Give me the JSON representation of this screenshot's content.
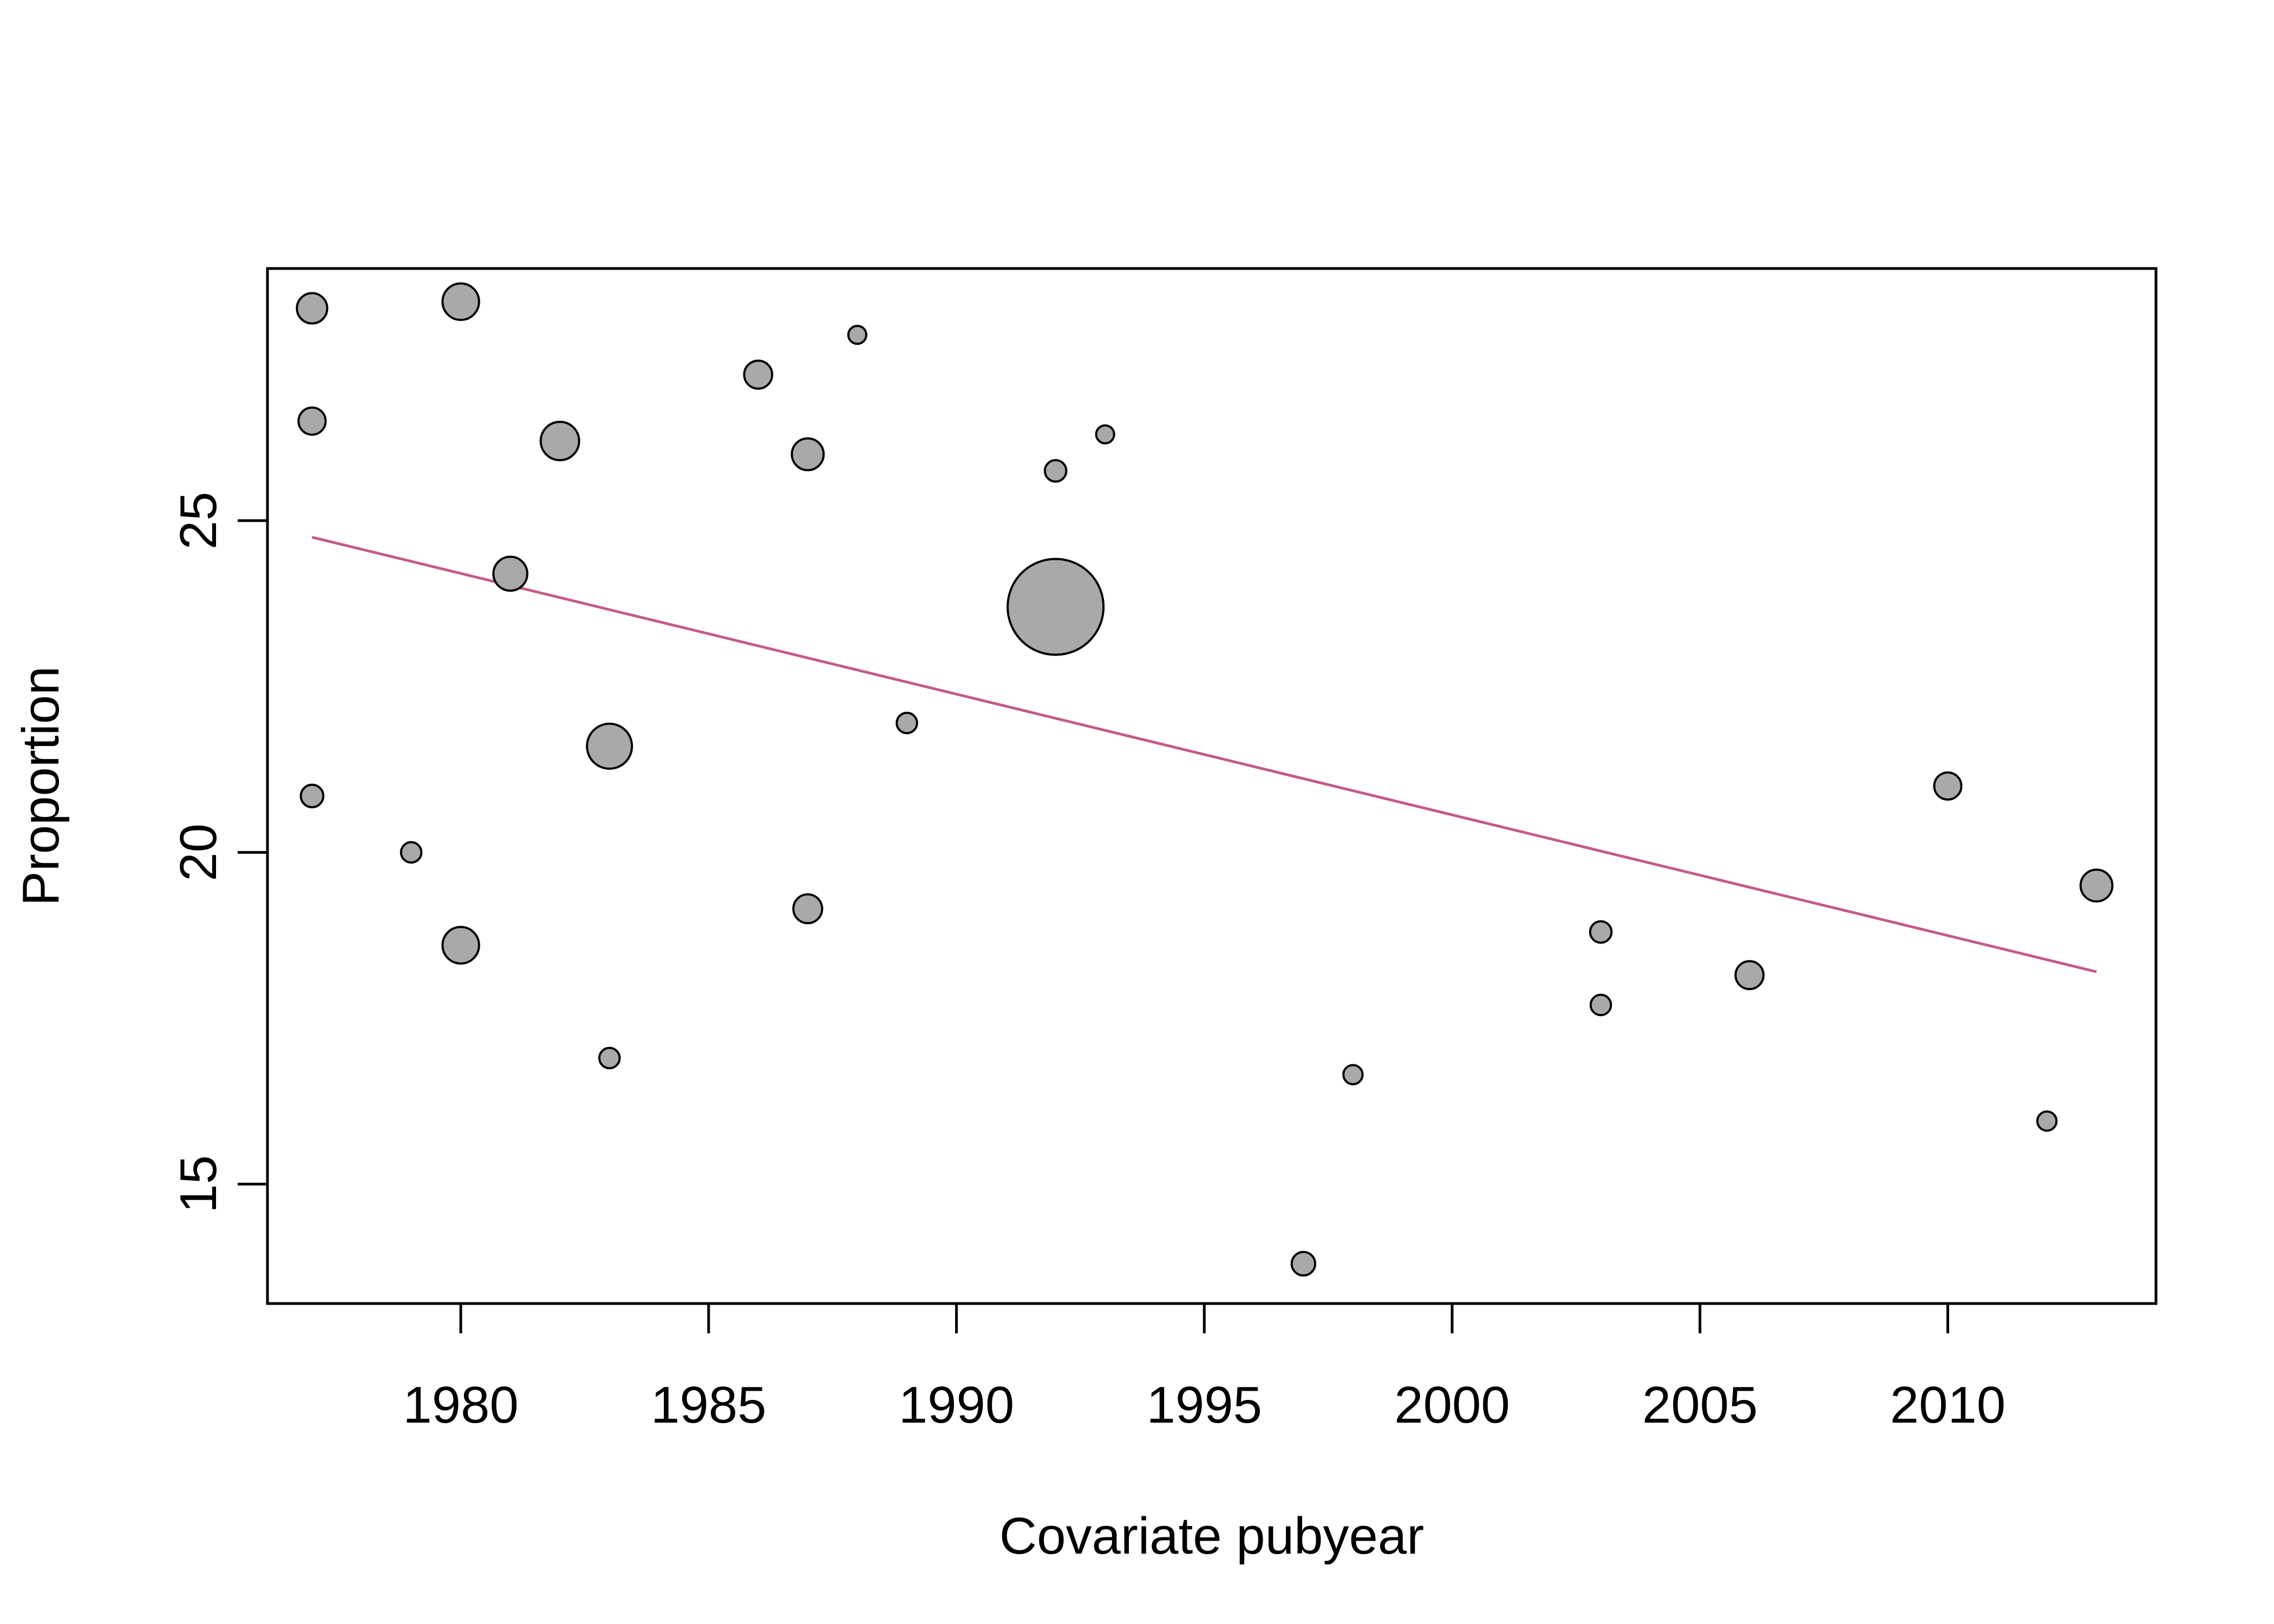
{
  "chart_data": {
    "type": "scatter",
    "title": "",
    "xlabel": "Covariate pubyear",
    "ylabel": "Proportion",
    "xlim": [
      1976.1,
      2014.2
    ],
    "ylim": [
      13.2,
      28.8
    ],
    "x_ticks": [
      1980,
      1985,
      1990,
      1995,
      2000,
      2005,
      2010
    ],
    "y_ticks": [
      15,
      20,
      25
    ],
    "grid": false,
    "legend": "none",
    "points": [
      {
        "x": 1977,
        "y": 28.2,
        "weight": 1.0
      },
      {
        "x": 1977,
        "y": 26.5,
        "weight": 0.8
      },
      {
        "x": 1977,
        "y": 20.85,
        "weight": 0.55
      },
      {
        "x": 1979,
        "y": 20.0,
        "weight": 0.45
      },
      {
        "x": 1980,
        "y": 28.3,
        "weight": 1.45
      },
      {
        "x": 1980,
        "y": 18.6,
        "weight": 1.45
      },
      {
        "x": 1981,
        "y": 24.2,
        "weight": 1.25
      },
      {
        "x": 1982,
        "y": 26.2,
        "weight": 1.6
      },
      {
        "x": 1983,
        "y": 21.6,
        "weight": 2.2
      },
      {
        "x": 1983,
        "y": 16.9,
        "weight": 0.45
      },
      {
        "x": 1986,
        "y": 27.2,
        "weight": 0.85
      },
      {
        "x": 1987,
        "y": 26.0,
        "weight": 1.1
      },
      {
        "x": 1987,
        "y": 19.15,
        "weight": 0.9
      },
      {
        "x": 1988,
        "y": 27.8,
        "weight": 0.35
      },
      {
        "x": 1989,
        "y": 21.95,
        "weight": 0.45
      },
      {
        "x": 1992,
        "y": 25.75,
        "weight": 0.5
      },
      {
        "x": 1992,
        "y": 23.7,
        "weight": 10.0
      },
      {
        "x": 1993,
        "y": 26.3,
        "weight": 0.35
      },
      {
        "x": 1997,
        "y": 13.8,
        "weight": 0.6
      },
      {
        "x": 1998,
        "y": 16.65,
        "weight": 0.4
      },
      {
        "x": 2003,
        "y": 18.8,
        "weight": 0.5
      },
      {
        "x": 2003,
        "y": 17.7,
        "weight": 0.45
      },
      {
        "x": 2006,
        "y": 18.15,
        "weight": 0.85
      },
      {
        "x": 2010,
        "y": 21.0,
        "weight": 0.8
      },
      {
        "x": 2012,
        "y": 15.95,
        "weight": 0.4
      },
      {
        "x": 2013,
        "y": 19.5,
        "weight": 1.1
      }
    ],
    "regression_line": {
      "x": [
        1977,
        2013
      ],
      "y": [
        24.75,
        18.2
      ],
      "color": "#c45a8a"
    },
    "point_fill": "#a9a9a9",
    "point_stroke": "#000000"
  }
}
